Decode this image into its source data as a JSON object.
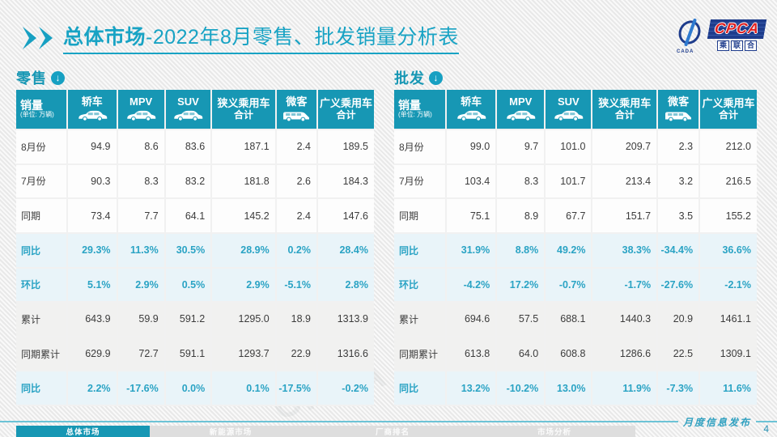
{
  "slide": {
    "title_bold": "总体市场",
    "title_rest": "-2022年8月零售、批发销量分析表",
    "watermark": "CPCA 乘联合",
    "footer_note": "月度信息发布",
    "page_number": "4",
    "logo": {
      "main": "CPCA",
      "cn_chars": [
        "乘",
        "联",
        "合"
      ],
      "icon_sub": "CADA"
    }
  },
  "colors": {
    "accent_teal": "#1797b4",
    "title_teal": "#18a3c4",
    "pct_text": "#2aa3c4",
    "pct_row_bg": "#e9f4f9",
    "logo_navy": "#1e3c8c",
    "logo_red": "#e02020"
  },
  "tables": {
    "retail": {
      "section_title": "零售",
      "section_icon": "circle-down-arrow-icon",
      "unit_label": "销量",
      "unit_sub": "(单位: 万辆)",
      "columns": [
        {
          "label": "轿车",
          "label2": "",
          "icon": "sedan-icon"
        },
        {
          "label": "MPV",
          "label2": "",
          "icon": "mpv-icon"
        },
        {
          "label": "SUV",
          "label2": "",
          "icon": "suv-icon"
        },
        {
          "label": "狭义乘用车",
          "label2": "合计",
          "icon": ""
        },
        {
          "label": "微客",
          "label2": "",
          "icon": "van-icon"
        },
        {
          "label": "广义乘用车",
          "label2": "合计",
          "icon": ""
        }
      ],
      "rows": [
        {
          "label": "8月份",
          "type": "month",
          "values": [
            "94.9",
            "8.6",
            "83.6",
            "187.1",
            "2.4",
            "189.5"
          ]
        },
        {
          "label": "7月份",
          "type": "month",
          "values": [
            "90.3",
            "8.3",
            "83.2",
            "181.8",
            "2.6",
            "184.3"
          ]
        },
        {
          "label": "同期",
          "type": "month",
          "values": [
            "73.4",
            "7.7",
            "64.1",
            "145.2",
            "2.4",
            "147.6"
          ]
        },
        {
          "label": "同比",
          "type": "pct",
          "values": [
            "29.3%",
            "11.3%",
            "30.5%",
            "28.9%",
            "0.2%",
            "28.4%"
          ]
        },
        {
          "label": "环比",
          "type": "pct",
          "values": [
            "5.1%",
            "2.9%",
            "0.5%",
            "2.9%",
            "-5.1%",
            "2.8%"
          ]
        },
        {
          "label": "累计",
          "type": "cum",
          "values": [
            "643.9",
            "59.9",
            "591.2",
            "1295.0",
            "18.9",
            "1313.9"
          ]
        },
        {
          "label": "同期累计",
          "type": "cum",
          "values": [
            "629.9",
            "72.7",
            "591.1",
            "1293.7",
            "22.9",
            "1316.6"
          ]
        },
        {
          "label": "同比",
          "type": "pct",
          "values": [
            "2.2%",
            "-17.6%",
            "0.0%",
            "0.1%",
            "-17.5%",
            "-0.2%"
          ]
        }
      ]
    },
    "wholesale": {
      "section_title": "批发",
      "section_icon": "circle-down-arrow-icon",
      "unit_label": "销量",
      "unit_sub": "(单位: 万辆)",
      "columns": [
        {
          "label": "轿车",
          "label2": "",
          "icon": "sedan-icon"
        },
        {
          "label": "MPV",
          "label2": "",
          "icon": "mpv-icon"
        },
        {
          "label": "SUV",
          "label2": "",
          "icon": "suv-icon"
        },
        {
          "label": "狭义乘用车",
          "label2": "合计",
          "icon": ""
        },
        {
          "label": "微客",
          "label2": "",
          "icon": "van-icon"
        },
        {
          "label": "广义乘用车",
          "label2": "合计",
          "icon": ""
        }
      ],
      "rows": [
        {
          "label": "8月份",
          "type": "month",
          "values": [
            "99.0",
            "9.7",
            "101.0",
            "209.7",
            "2.3",
            "212.0"
          ]
        },
        {
          "label": "7月份",
          "type": "month",
          "values": [
            "103.4",
            "8.3",
            "101.7",
            "213.4",
            "3.2",
            "216.5"
          ]
        },
        {
          "label": "同期",
          "type": "month",
          "values": [
            "75.1",
            "8.9",
            "67.7",
            "151.7",
            "3.5",
            "155.2"
          ]
        },
        {
          "label": "同比",
          "type": "pct",
          "values": [
            "31.9%",
            "8.8%",
            "49.2%",
            "38.3%",
            "-34.4%",
            "36.6%"
          ]
        },
        {
          "label": "环比",
          "type": "pct",
          "values": [
            "-4.2%",
            "17.2%",
            "-0.7%",
            "-1.7%",
            "-27.6%",
            "-2.1%"
          ]
        },
        {
          "label": "累计",
          "type": "cum",
          "values": [
            "694.6",
            "57.5",
            "688.1",
            "1440.3",
            "20.9",
            "1461.1"
          ]
        },
        {
          "label": "同期累计",
          "type": "cum",
          "values": [
            "613.8",
            "64.0",
            "608.8",
            "1286.6",
            "22.5",
            "1309.1"
          ]
        },
        {
          "label": "同比",
          "type": "pct",
          "values": [
            "13.2%",
            "-10.2%",
            "13.0%",
            "11.9%",
            "-7.3%",
            "11.6%"
          ]
        }
      ]
    }
  },
  "footer_tabs": [
    {
      "label": "总体市场",
      "active": true
    },
    {
      "label": "新能源市场",
      "active": false
    },
    {
      "label": "厂商排名",
      "active": false
    },
    {
      "label": "市场分析",
      "active": false
    }
  ]
}
